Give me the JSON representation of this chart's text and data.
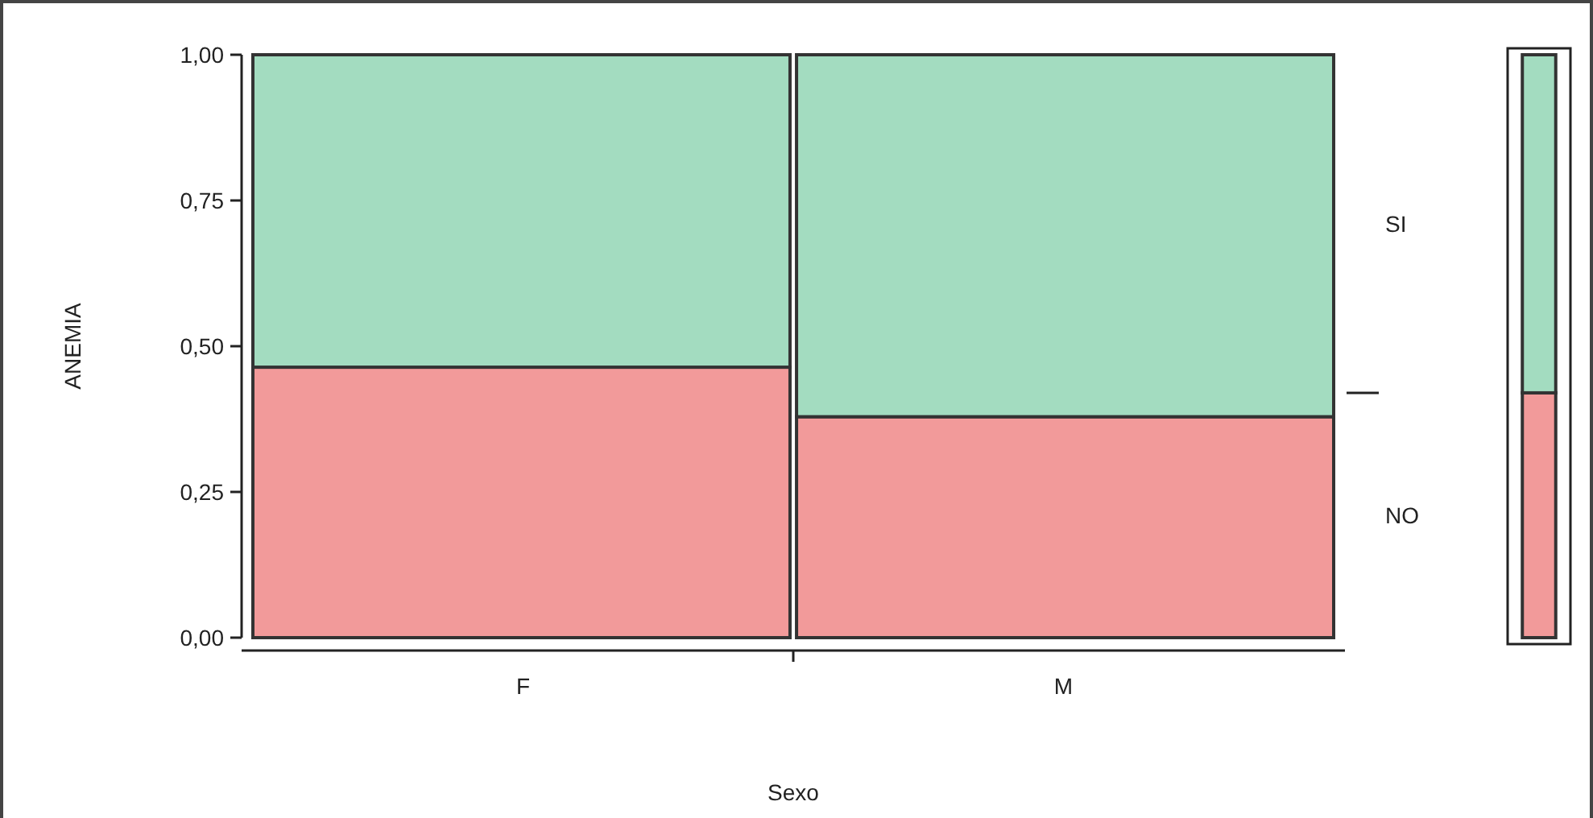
{
  "chart_data": [
    {
      "type": "bar",
      "stacked": true,
      "categories": [
        "F",
        "M"
      ],
      "xlabel": "Sexo",
      "ylabel": "ANEMIA",
      "ylim": [
        0,
        1
      ],
      "yticks": [
        {
          "value": 0,
          "label": "0,00"
        },
        {
          "value": 0.25,
          "label": "0,25"
        },
        {
          "value": 0.5,
          "label": "0,50"
        },
        {
          "value": 0.75,
          "label": "0,75"
        },
        {
          "value": 1,
          "label": "1,00"
        }
      ],
      "legend": false,
      "series": [
        {
          "name": "NO",
          "color": "#f29a9a",
          "values": [
            0.464,
            0.379
          ]
        },
        {
          "name": "SI",
          "color": "#a3dcc0",
          "values": [
            0.536,
            0.621
          ]
        }
      ]
    },
    {
      "type": "bar",
      "stacked": true,
      "categories": [
        null
      ],
      "ylim": [
        0,
        1
      ],
      "legend": false,
      "series": [
        {
          "color": "#f29a9a",
          "values": [
            0.42
          ]
        },
        {
          "color": "#a3dcc0",
          "values": [
            0.58
          ]
        }
      ]
    }
  ]
}
